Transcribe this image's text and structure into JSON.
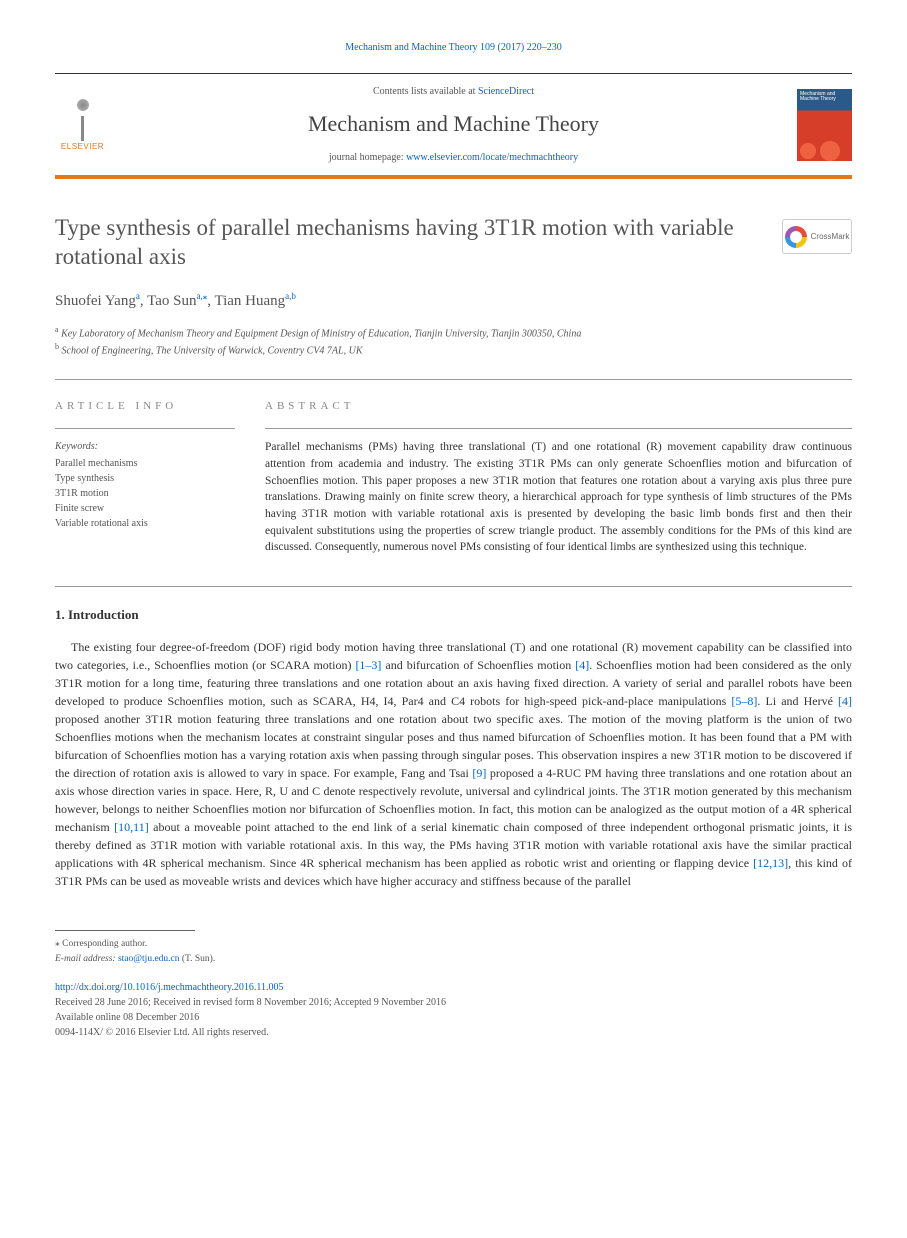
{
  "journal_ref": "Mechanism and Machine Theory 109 (2017) 220–230",
  "header": {
    "contents_prefix": "Contents lists available at ",
    "contents_link": "ScienceDirect",
    "journal_name": "Mechanism and Machine Theory",
    "homepage_prefix": "journal homepage: ",
    "homepage_url": "www.elsevier.com/locate/mechmachtheory",
    "publisher": "ELSEVIER",
    "cover_label": "Mechanism and Machine Theory"
  },
  "crossmark": "CrossMark",
  "title": "Type synthesis of parallel mechanisms having 3T1R motion with variable rotational axis",
  "authors_html": "Shuofei Yang<sup>a</sup>, Tao Sun<sup>a,</sup><sup>⁎</sup>, Tian Huang<sup>a,b</sup>",
  "affiliations": [
    {
      "sup": "a",
      "text": "Key Laboratory of Mechanism Theory and Equipment Design of Ministry of Education, Tianjin University, Tianjin 300350, China"
    },
    {
      "sup": "b",
      "text": "School of Engineering, The University of Warwick, Coventry CV4 7AL, UK"
    }
  ],
  "info": {
    "label": "ARTICLE INFO",
    "keywords_hdr": "Keywords:",
    "keywords": [
      "Parallel mechanisms",
      "Type synthesis",
      "3T1R motion",
      "Finite screw",
      "Variable rotational axis"
    ]
  },
  "abstract": {
    "label": "ABSTRACT",
    "text": "Parallel mechanisms (PMs) having three translational (T) and one rotational (R) movement capability draw continuous attention from academia and industry. The existing 3T1R PMs can only generate Schoenflies motion and bifurcation of Schoenflies motion. This paper proposes a new 3T1R motion that features one rotation about a varying axis plus three pure translations. Drawing mainly on finite screw theory, a hierarchical approach for type synthesis of limb structures of the PMs having 3T1R motion with variable rotational axis is presented by developing the basic limb bonds first and then their equivalent substitutions using the properties of screw triangle product. The assembly conditions for the PMs of this kind are discussed. Consequently, numerous novel PMs consisting of four identical limbs are synthesized using this technique."
  },
  "intro": {
    "heading": "1. Introduction",
    "body_html": "The existing four degree-of-freedom (DOF) rigid body motion having three translational (T) and one rotational (R) movement capability can be classified into two categories, i.e., Schoenflies motion (or SCARA motion) <a href='#'>[1–3]</a> and bifurcation of Schoenflies motion <a href='#'>[4]</a>. Schoenflies motion had been considered as the only 3T1R motion for a long time, featuring three translations and one rotation about an axis having fixed direction. A variety of serial and parallel robots have been developed to produce Schoenflies motion, such as SCARA, H4, I4, Par4 and C4 robots for high-speed pick-and-place manipulations <a href='#'>[5–8]</a>. Li and Hervé <a href='#'>[4]</a> proposed another 3T1R motion featuring three translations and one rotation about two specific axes. The motion of the moving platform is the union of two Schoenflies motions when the mechanism locates at constraint singular poses and thus named bifurcation of Schoenflies motion. It has been found that a PM with bifurcation of Schoenflies motion has a varying rotation axis when passing through singular poses. This observation inspires a new 3T1R motion to be discovered if the direction of rotation axis is allowed to vary in space. For example, Fang and Tsai <a href='#'>[9]</a> proposed a 4-RUC PM having three translations and one rotation about an axis whose direction varies in space. Here, R, U and C denote respectively revolute, universal and cylindrical joints. The 3T1R motion generated by this mechanism however, belongs to neither Schoenflies motion nor bifurcation of Schoenflies motion. In fact, this motion can be analogized as the output motion of a 4R spherical mechanism <a href='#'>[10,11]</a> about a moveable point attached to the end link of a serial kinematic chain composed of three independent orthogonal prismatic joints, it is thereby defined as 3T1R motion with variable rotational axis. In this way, the PMs having 3T1R motion with variable rotational axis have the similar practical applications with 4R spherical mechanism. Since 4R spherical mechanism has been applied as robotic wrist and orienting or flapping device <a href='#'>[12,13]</a>, this kind of 3T1R PMs can be used as moveable wrists and devices which have higher accuracy and stiffness because of the parallel"
  },
  "footnotes": {
    "corresponding": "⁎ Corresponding author.",
    "email_label": "E-mail address:",
    "email": "stao@tju.edu.cn",
    "email_suffix": "(T. Sun)."
  },
  "doi": "http://dx.doi.org/10.1016/j.mechmachtheory.2016.11.005",
  "history": {
    "received": "Received 28 June 2016; Received in revised form 8 November 2016; Accepted 9 November 2016",
    "online": "Available online 08 December 2016",
    "copyright": "0094-114X/ © 2016 Elsevier Ltd. All rights reserved."
  },
  "colors": {
    "link": "#0066cc",
    "accent": "#e67817",
    "text": "#333333",
    "muted": "#555555"
  }
}
